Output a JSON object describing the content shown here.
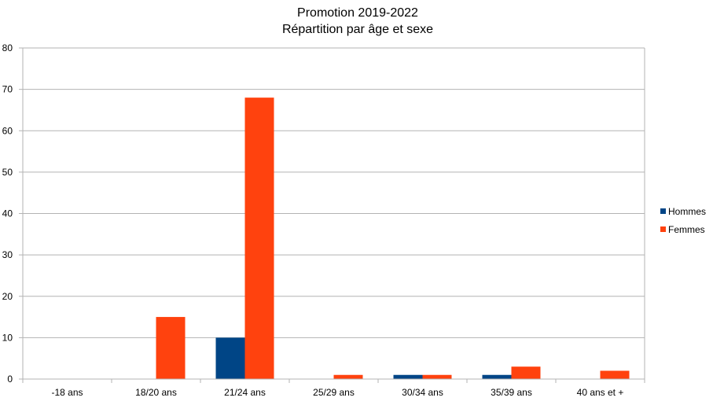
{
  "chart_data": {
    "type": "bar",
    "title": [
      "Promotion 2019-2022",
      "Répartition par âge et sexe"
    ],
    "xlabel": "",
    "ylabel": "",
    "categories": [
      "-18 ans",
      "18/20 ans",
      "21/24 ans",
      "25/29 ans",
      "30/34 ans",
      "35/39 ans",
      "40 ans et +"
    ],
    "series": [
      {
        "name": "Hommes",
        "color": "#004586",
        "values": [
          0,
          0,
          10,
          0,
          1,
          1,
          0
        ]
      },
      {
        "name": "Femmes",
        "color": "#ff420e",
        "values": [
          0,
          15,
          68,
          1,
          1,
          3,
          2
        ]
      }
    ],
    "ylim": [
      0,
      80
    ],
    "yticks": [
      0,
      10,
      20,
      30,
      40,
      50,
      60,
      70,
      80
    ],
    "grid": true,
    "legend_position": "right"
  }
}
